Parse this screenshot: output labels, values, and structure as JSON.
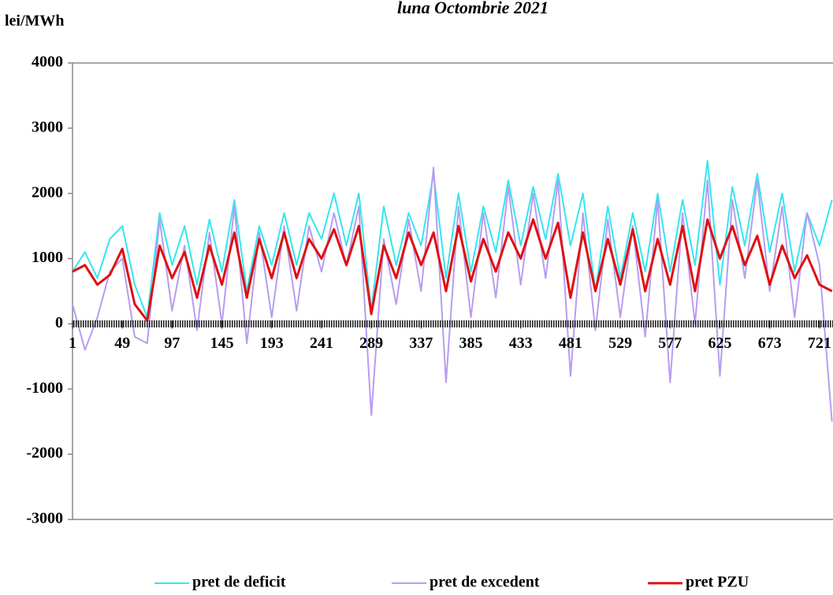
{
  "chart_data": {
    "type": "line",
    "title": "luna Octombrie 2021",
    "y_label": "lei/MWh",
    "x": [
      1,
      13,
      25,
      37,
      49,
      61,
      73,
      85,
      97,
      109,
      121,
      133,
      145,
      157,
      169,
      181,
      193,
      205,
      217,
      229,
      241,
      253,
      265,
      277,
      289,
      301,
      313,
      325,
      337,
      349,
      361,
      373,
      385,
      397,
      409,
      421,
      433,
      445,
      457,
      469,
      481,
      493,
      505,
      517,
      529,
      541,
      553,
      565,
      577,
      589,
      601,
      613,
      625,
      637,
      649,
      661,
      673,
      685,
      697,
      709,
      721,
      733
    ],
    "series": [
      {
        "name": "pret de deficit",
        "color": "#33e6f0",
        "values": [
          800,
          1100,
          700,
          1300,
          1500,
          600,
          100,
          1700,
          900,
          1500,
          600,
          1600,
          800,
          1900,
          500,
          1500,
          900,
          1700,
          900,
          1700,
          1300,
          2000,
          1200,
          2000,
          200,
          1800,
          900,
          1700,
          1200,
          2300,
          700,
          2000,
          800,
          1800,
          1100,
          2200,
          1200,
          2100,
          1300,
          2300,
          1200,
          2000,
          500,
          1800,
          700,
          1700,
          800,
          2000,
          800,
          1900,
          900,
          2500,
          600,
          2100,
          1200,
          2300,
          1100,
          2000,
          800,
          1700,
          1200,
          1900
        ]
      },
      {
        "name": "pret de excedent",
        "color": "#b89cf0",
        "values": [
          300,
          -400,
          100,
          800,
          1000,
          -200,
          -300,
          1600,
          200,
          1200,
          -100,
          1400,
          0,
          1800,
          -300,
          1400,
          100,
          1500,
          200,
          1500,
          800,
          1700,
          900,
          1800,
          -1400,
          1300,
          300,
          1600,
          500,
          2400,
          -900,
          1800,
          100,
          1700,
          400,
          2100,
          600,
          2000,
          700,
          2200,
          -800,
          1700,
          -100,
          1600,
          100,
          1500,
          -200,
          1900,
          -900,
          1700,
          0,
          2200,
          -800,
          1900,
          700,
          2200,
          500,
          1800,
          100,
          1700,
          900,
          -1500
        ]
      },
      {
        "name": "pret PZU",
        "color": "#e01010",
        "values": [
          800,
          900,
          600,
          750,
          1150,
          300,
          50,
          1200,
          700,
          1100,
          400,
          1200,
          600,
          1400,
          400,
          1300,
          700,
          1400,
          700,
          1300,
          1000,
          1450,
          900,
          1500,
          150,
          1200,
          700,
          1400,
          900,
          1400,
          500,
          1500,
          650,
          1300,
          800,
          1400,
          1000,
          1600,
          1000,
          1550,
          400,
          1400,
          500,
          1300,
          600,
          1450,
          500,
          1300,
          600,
          1500,
          500,
          1600,
          1000,
          1500,
          900,
          1350,
          600,
          1200,
          700,
          1050,
          600,
          500
        ]
      }
    ],
    "xlim": [
      1,
      734
    ],
    "xticks": [
      1,
      49,
      97,
      145,
      193,
      241,
      289,
      337,
      385,
      433,
      481,
      529,
      577,
      625,
      673,
      721
    ],
    "ylim": [
      -3000,
      4000
    ],
    "yticks": [
      -3000,
      -2000,
      -1000,
      0,
      1000,
      2000,
      3000,
      4000
    ]
  }
}
